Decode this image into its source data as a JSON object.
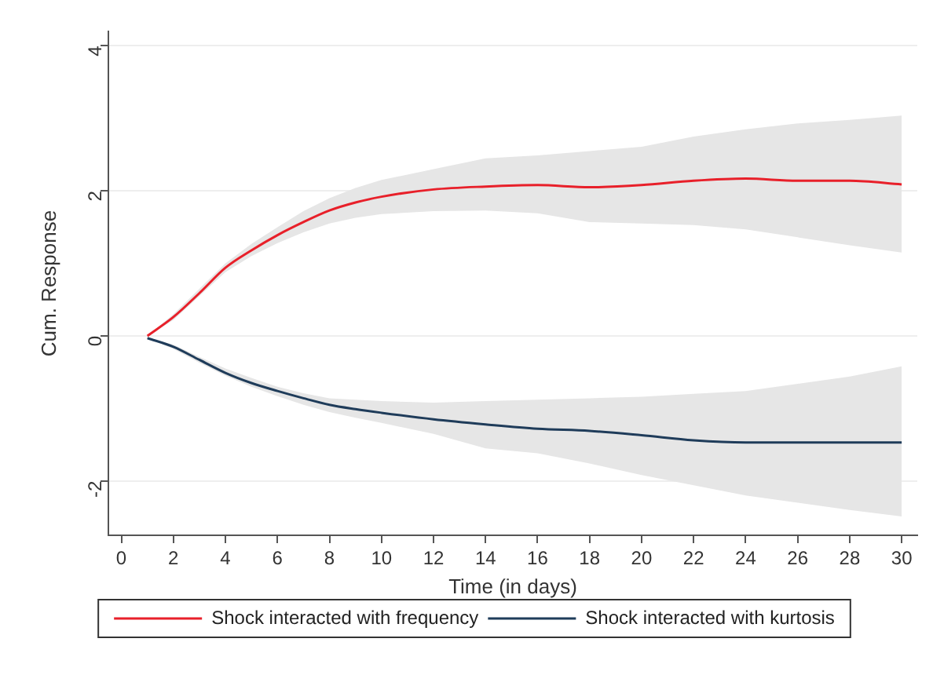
{
  "chart_data": {
    "type": "line",
    "xlabel": "Time (in days)",
    "ylabel": "Cum. Response",
    "x": [
      1,
      2,
      3,
      4,
      5,
      6,
      7,
      8,
      9,
      10,
      12,
      14,
      16,
      18,
      20,
      22,
      24,
      26,
      28,
      30
    ],
    "series": [
      {
        "name": "Shock interacted with frequency",
        "color": "#e8202a",
        "values": [
          0,
          0.26,
          0.59,
          0.94,
          1.18,
          1.39,
          1.57,
          1.73,
          1.84,
          1.92,
          2.02,
          2.06,
          2.08,
          2.05,
          2.08,
          2.14,
          2.17,
          2.14,
          2.14,
          2.09
        ],
        "lower": [
          0,
          0.22,
          0.55,
          0.88,
          1.1,
          1.28,
          1.43,
          1.55,
          1.63,
          1.68,
          1.72,
          1.73,
          1.69,
          1.57,
          1.55,
          1.53,
          1.47,
          1.36,
          1.25,
          1.15
        ],
        "upper": [
          0,
          0.3,
          0.65,
          1.0,
          1.27,
          1.5,
          1.72,
          1.9,
          2.04,
          2.15,
          2.3,
          2.45,
          2.49,
          2.55,
          2.61,
          2.75,
          2.85,
          2.93,
          2.98,
          3.04
        ]
      },
      {
        "name": "Shock interacted with kurtosis",
        "color": "#1f3c5a",
        "values": [
          -0.03,
          -0.15,
          -0.33,
          -0.51,
          -0.65,
          -0.76,
          -0.86,
          -0.95,
          -1.01,
          -1.06,
          -1.15,
          -1.22,
          -1.28,
          -1.31,
          -1.37,
          -1.44,
          -1.47,
          -1.47,
          -1.47,
          -1.47
        ],
        "lower": [
          -0.03,
          -0.18,
          -0.37,
          -0.55,
          -0.7,
          -0.83,
          -0.95,
          -1.05,
          -1.13,
          -1.2,
          -1.35,
          -1.55,
          -1.62,
          -1.76,
          -1.92,
          -2.06,
          -2.2,
          -2.3,
          -2.4,
          -2.49
        ],
        "upper": [
          -0.03,
          -0.12,
          -0.29,
          -0.45,
          -0.58,
          -0.7,
          -0.79,
          -0.86,
          -0.88,
          -0.9,
          -0.92,
          -0.9,
          -0.88,
          -0.86,
          -0.84,
          -0.8,
          -0.76,
          -0.66,
          -0.56,
          -0.42
        ]
      }
    ],
    "xlim": [
      -0.5,
      30.6
    ],
    "xticks": [
      0,
      2,
      4,
      6,
      8,
      10,
      12,
      14,
      16,
      18,
      20,
      22,
      24,
      26,
      28,
      30
    ],
    "ylim": [
      -2.75,
      4.2
    ],
    "yticks": [
      -2,
      0,
      2,
      4
    ],
    "grid": "y",
    "legend": "bottom",
    "marker": "none",
    "line_style": "solid"
  }
}
